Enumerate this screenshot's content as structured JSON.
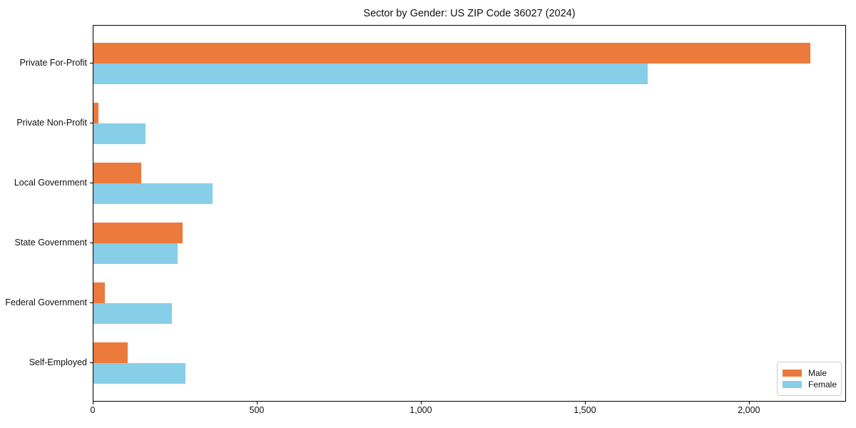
{
  "title": "Sector by Gender: US ZIP Code 36027 (2024)",
  "chart_data": {
    "type": "bar",
    "orientation": "horizontal",
    "title": "Sector by Gender: US ZIP Code 36027 (2024)",
    "categories": [
      "Private For-Profit",
      "Private Non-Profit",
      "Local Government",
      "State Government",
      "Federal Government",
      "Self-Employed"
    ],
    "series": [
      {
        "name": "Male",
        "color": "#EC7A3C",
        "values": [
          2185,
          16,
          145,
          272,
          35,
          105
        ]
      },
      {
        "name": "Female",
        "color": "#87CEE8",
        "values": [
          1690,
          158,
          362,
          257,
          238,
          280
        ]
      }
    ],
    "xlabel": "",
    "ylabel": "",
    "xlim": [
      0,
      2296
    ],
    "x_ticks": [
      0,
      500,
      1000,
      1500,
      2000
    ],
    "x_tick_labels": [
      "0",
      "500",
      "1,000",
      "1,500",
      "2,000"
    ],
    "grid": false,
    "legend": {
      "position": "lower right",
      "entries": [
        {
          "label": "Male",
          "color": "#EC7A3C"
        },
        {
          "label": "Female",
          "color": "#87CEE8"
        }
      ]
    }
  }
}
